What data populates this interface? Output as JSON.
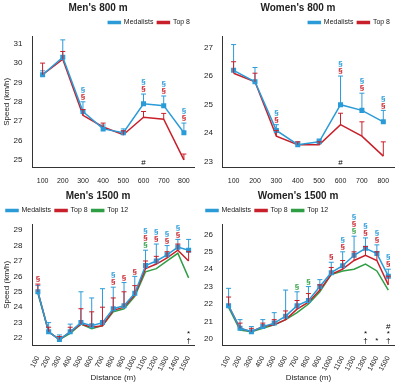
{
  "chart_data": [
    {
      "type": "line",
      "title": "Men's 800 m",
      "y_label": "Speed (km/h)",
      "x": [
        100,
        200,
        300,
        400,
        500,
        600,
        700,
        800
      ],
      "xlim": [
        50,
        850
      ],
      "xticks": [
        100,
        200,
        300,
        400,
        500,
        600,
        700,
        800
      ],
      "ylim": [
        24.6,
        31.4
      ],
      "yticks": [
        25,
        26,
        27,
        28,
        29,
        30,
        31
      ],
      "grid": false,
      "legend": "upper right",
      "series": [
        {
          "name": "Medalists",
          "color": "#2b9bd8",
          "marker": "square",
          "values": [
            29.4,
            30.3,
            27.5,
            26.6,
            26.4,
            27.9,
            27.8,
            26.4
          ],
          "errors": [
            0.2,
            0.9,
            0.5,
            0.2,
            0.2,
            0.5,
            0.5,
            0.5
          ]
        },
        {
          "name": "Top 8",
          "color": "#c8202a",
          "marker": "none",
          "values": [
            29.4,
            30.2,
            27.3,
            26.7,
            26.3,
            27.2,
            27.1,
            25.0
          ],
          "errors": [
            0.6,
            0.4,
            0.3,
            0.2,
            0.2,
            0.3,
            0.3,
            0.3
          ]
        }
      ],
      "annotations": [
        {
          "x": 300,
          "text": "§",
          "color": "#c8202a"
        },
        {
          "x": 300,
          "text": "§",
          "color": "#2b9bd8"
        },
        {
          "x": 600,
          "text": "§",
          "color": "#c8202a"
        },
        {
          "x": 600,
          "text": "§",
          "color": "#2b9bd8"
        },
        {
          "x": 700,
          "text": "§",
          "color": "#c8202a"
        },
        {
          "x": 700,
          "text": "§",
          "color": "#2b9bd8"
        },
        {
          "x": 800,
          "text": "§",
          "color": "#c8202a"
        },
        {
          "x": 800,
          "text": "§",
          "color": "#2b9bd8"
        }
      ],
      "bottom_annotations": [
        {
          "x": 600,
          "text": "#"
        }
      ]
    },
    {
      "type": "line",
      "title": "Women's 800 m",
      "x": [
        100,
        200,
        300,
        400,
        500,
        600,
        700,
        800
      ],
      "xlim": [
        50,
        850
      ],
      "xticks": [
        100,
        200,
        300,
        400,
        500,
        600,
        700,
        800
      ],
      "ylim": [
        22.8,
        27.4
      ],
      "yticks": [
        23,
        24,
        25,
        26,
        27
      ],
      "grid": false,
      "legend": "upper right",
      "series": [
        {
          "name": "Medalists",
          "color": "#2b9bd8",
          "marker": "square",
          "values": [
            26.2,
            25.8,
            24.1,
            23.6,
            23.7,
            25.0,
            24.8,
            24.4
          ],
          "errors": [
            0.9,
            0.5,
            0.2,
            0.1,
            0.1,
            1.0,
            0.6,
            0.4
          ]
        },
        {
          "name": "Top 8",
          "color": "#c8202a",
          "marker": "none",
          "values": [
            26.1,
            25.8,
            23.9,
            23.6,
            23.6,
            24.3,
            23.9,
            23.2
          ],
          "errors": [
            0.4,
            0.3,
            0.2,
            0.1,
            0.1,
            0.4,
            0.5,
            0.5
          ]
        }
      ],
      "annotations": [
        {
          "x": 300,
          "text": "§",
          "color": "#c8202a"
        },
        {
          "x": 300,
          "text": "§",
          "color": "#2b9bd8"
        },
        {
          "x": 600,
          "text": "§",
          "color": "#c8202a"
        },
        {
          "x": 600,
          "text": "§",
          "color": "#2b9bd8"
        },
        {
          "x": 700,
          "text": "§",
          "color": "#c8202a"
        },
        {
          "x": 700,
          "text": "§",
          "color": "#2b9bd8"
        },
        {
          "x": 800,
          "text": "§",
          "color": "#c8202a"
        },
        {
          "x": 800,
          "text": "§",
          "color": "#2b9bd8"
        }
      ],
      "bottom_annotations": [
        {
          "x": 600,
          "text": "#"
        }
      ]
    },
    {
      "type": "line",
      "title": "Men's 1500 m",
      "x_label": "Distance (m)",
      "y_label": "Speed (km/h)",
      "x": [
        100,
        200,
        300,
        400,
        500,
        600,
        700,
        800,
        900,
        1000,
        1100,
        1200,
        1300,
        1400,
        1500
      ],
      "xlim": [
        50,
        1550
      ],
      "xticks": [
        100,
        200,
        300,
        400,
        500,
        600,
        700,
        800,
        900,
        1000,
        1100,
        1200,
        1300,
        1400,
        1500
      ],
      "ylim": [
        21.5,
        29.4
      ],
      "yticks": [
        22,
        23,
        24,
        25,
        26,
        27,
        28,
        29
      ],
      "grid": false,
      "legend": "upper left",
      "series": [
        {
          "name": "Medalists",
          "color": "#2b9bd8",
          "marker": "square",
          "values": [
            25.0,
            22.4,
            21.9,
            22.4,
            23.0,
            22.8,
            23.0,
            23.9,
            24.1,
            24.9,
            26.7,
            27.0,
            27.4,
            27.9,
            27.7
          ],
          "errors": [
            0.4,
            0.6,
            0.3,
            0.5,
            2.0,
            1.8,
            2.2,
            1.4,
            1.5,
            1.1,
            1.0,
            1.1,
            0.6,
            0.5,
            0.7
          ]
        },
        {
          "name": "Top 8",
          "color": "#c8202a",
          "marker": "none",
          "values": [
            25.0,
            22.4,
            21.9,
            22.4,
            22.9,
            22.7,
            22.8,
            23.8,
            24.0,
            24.8,
            26.5,
            26.8,
            27.2,
            27.7,
            27.0
          ],
          "errors": [
            0.5,
            0.3,
            0.2,
            0.3,
            1.0,
            1.0,
            1.2,
            0.8,
            1.0,
            0.6,
            0.5,
            0.5,
            0.4,
            0.4,
            0.6
          ]
        },
        {
          "name": "Top 12",
          "color": "#2f9e44",
          "marker": "none",
          "values": [
            24.9,
            22.4,
            21.9,
            22.3,
            22.9,
            22.6,
            22.8,
            23.7,
            23.9,
            24.7,
            26.3,
            26.5,
            27.0,
            27.5,
            25.9
          ]
        }
      ],
      "annotations": [
        {
          "x": 100,
          "text": "§",
          "color": "#c8202a"
        },
        {
          "x": 800,
          "text": "§",
          "color": "#c8202a"
        },
        {
          "x": 800,
          "text": "§",
          "color": "#2b9bd8"
        },
        {
          "x": 900,
          "text": "§",
          "color": "#c8202a"
        },
        {
          "x": 1000,
          "text": "§",
          "color": "#c8202a"
        },
        {
          "x": 1100,
          "text": "§",
          "color": "#2f9e44"
        },
        {
          "x": 1100,
          "text": "§",
          "color": "#c8202a"
        },
        {
          "x": 1100,
          "text": "§",
          "color": "#2b9bd8"
        },
        {
          "x": 1200,
          "text": "§",
          "color": "#c8202a"
        },
        {
          "x": 1200,
          "text": "§",
          "color": "#2b9bd8"
        },
        {
          "x": 1300,
          "text": "§",
          "color": "#c8202a"
        },
        {
          "x": 1300,
          "text": "§",
          "color": "#2b9bd8"
        },
        {
          "x": 1400,
          "text": "§",
          "color": "#c8202a"
        },
        {
          "x": 1400,
          "text": "§",
          "color": "#2b9bd8"
        }
      ],
      "bottom_annotations": [
        {
          "x": 1500,
          "text": "†"
        },
        {
          "x": 1500,
          "text": "*"
        }
      ]
    },
    {
      "type": "line",
      "title": "Women's 1500 m",
      "x_label": "Distance (m)",
      "x": [
        100,
        200,
        300,
        400,
        500,
        600,
        700,
        800,
        900,
        1000,
        1100,
        1200,
        1300,
        1400,
        1500
      ],
      "xlim": [
        50,
        1550
      ],
      "xticks": [
        100,
        200,
        300,
        400,
        500,
        600,
        700,
        800,
        900,
        1000,
        1100,
        1200,
        1300,
        1400,
        1500
      ],
      "ylim": [
        19.6,
        26.6
      ],
      "yticks": [
        20,
        21,
        22,
        23,
        24,
        25,
        26
      ],
      "grid": false,
      "legend": "upper left",
      "series": [
        {
          "name": "Medalists",
          "color": "#2b9bd8",
          "marker": "square",
          "values": [
            21.9,
            20.6,
            20.4,
            20.7,
            20.9,
            21.3,
            21.9,
            22.2,
            23.0,
            23.8,
            24.2,
            24.8,
            25.2,
            24.9,
            23.6
          ],
          "errors": [
            1.0,
            0.5,
            0.3,
            0.4,
            0.6,
            1.5,
            0.8,
            0.8,
            0.4,
            0.6,
            0.8,
            1.1,
            0.6,
            0.5,
            0.4
          ]
        },
        {
          "name": "Top 8",
          "color": "#c8202a",
          "marker": "none",
          "values": [
            21.9,
            20.6,
            20.4,
            20.7,
            20.8,
            21.1,
            21.7,
            22.1,
            22.8,
            23.7,
            24.0,
            24.5,
            24.8,
            24.5,
            23.1
          ],
          "errors": [
            0.5,
            0.3,
            0.2,
            0.2,
            0.3,
            0.5,
            0.5,
            0.5,
            0.3,
            0.4,
            0.5,
            0.5,
            0.5,
            0.5,
            0.5
          ]
        },
        {
          "name": "Top 12",
          "color": "#2f9e44",
          "marker": "none",
          "values": [
            21.8,
            20.5,
            20.4,
            20.6,
            20.8,
            21.1,
            21.5,
            22.0,
            22.7,
            23.7,
            23.9,
            24.0,
            24.3,
            23.9,
            22.8
          ]
        }
      ],
      "annotations": [
        {
          "x": 700,
          "text": "§",
          "color": "#2f9e44"
        },
        {
          "x": 800,
          "text": "§",
          "color": "#2f9e44"
        },
        {
          "x": 1000,
          "text": "§",
          "color": "#c8202a"
        },
        {
          "x": 1100,
          "text": "§",
          "color": "#c8202a"
        },
        {
          "x": 1100,
          "text": "§",
          "color": "#2b9bd8"
        },
        {
          "x": 1200,
          "text": "§",
          "color": "#2f9e44"
        },
        {
          "x": 1200,
          "text": "§",
          "color": "#c8202a"
        },
        {
          "x": 1200,
          "text": "§",
          "color": "#2b9bd8"
        },
        {
          "x": 1300,
          "text": "§",
          "color": "#c8202a"
        },
        {
          "x": 1300,
          "text": "§",
          "color": "#2b9bd8"
        },
        {
          "x": 1400,
          "text": "§",
          "color": "#c8202a"
        },
        {
          "x": 1400,
          "text": "§",
          "color": "#2b9bd8"
        },
        {
          "x": 1500,
          "text": "§",
          "color": "#c8202a"
        },
        {
          "x": 1500,
          "text": "§",
          "color": "#2b9bd8"
        }
      ],
      "bottom_annotations": [
        {
          "x": 1300,
          "text": "†"
        },
        {
          "x": 1300,
          "text": "*"
        },
        {
          "x": 1400,
          "text": "*"
        },
        {
          "x": 1500,
          "text": "†"
        },
        {
          "x": 1500,
          "text": "*"
        },
        {
          "x": 1500,
          "text": "#"
        }
      ]
    }
  ]
}
